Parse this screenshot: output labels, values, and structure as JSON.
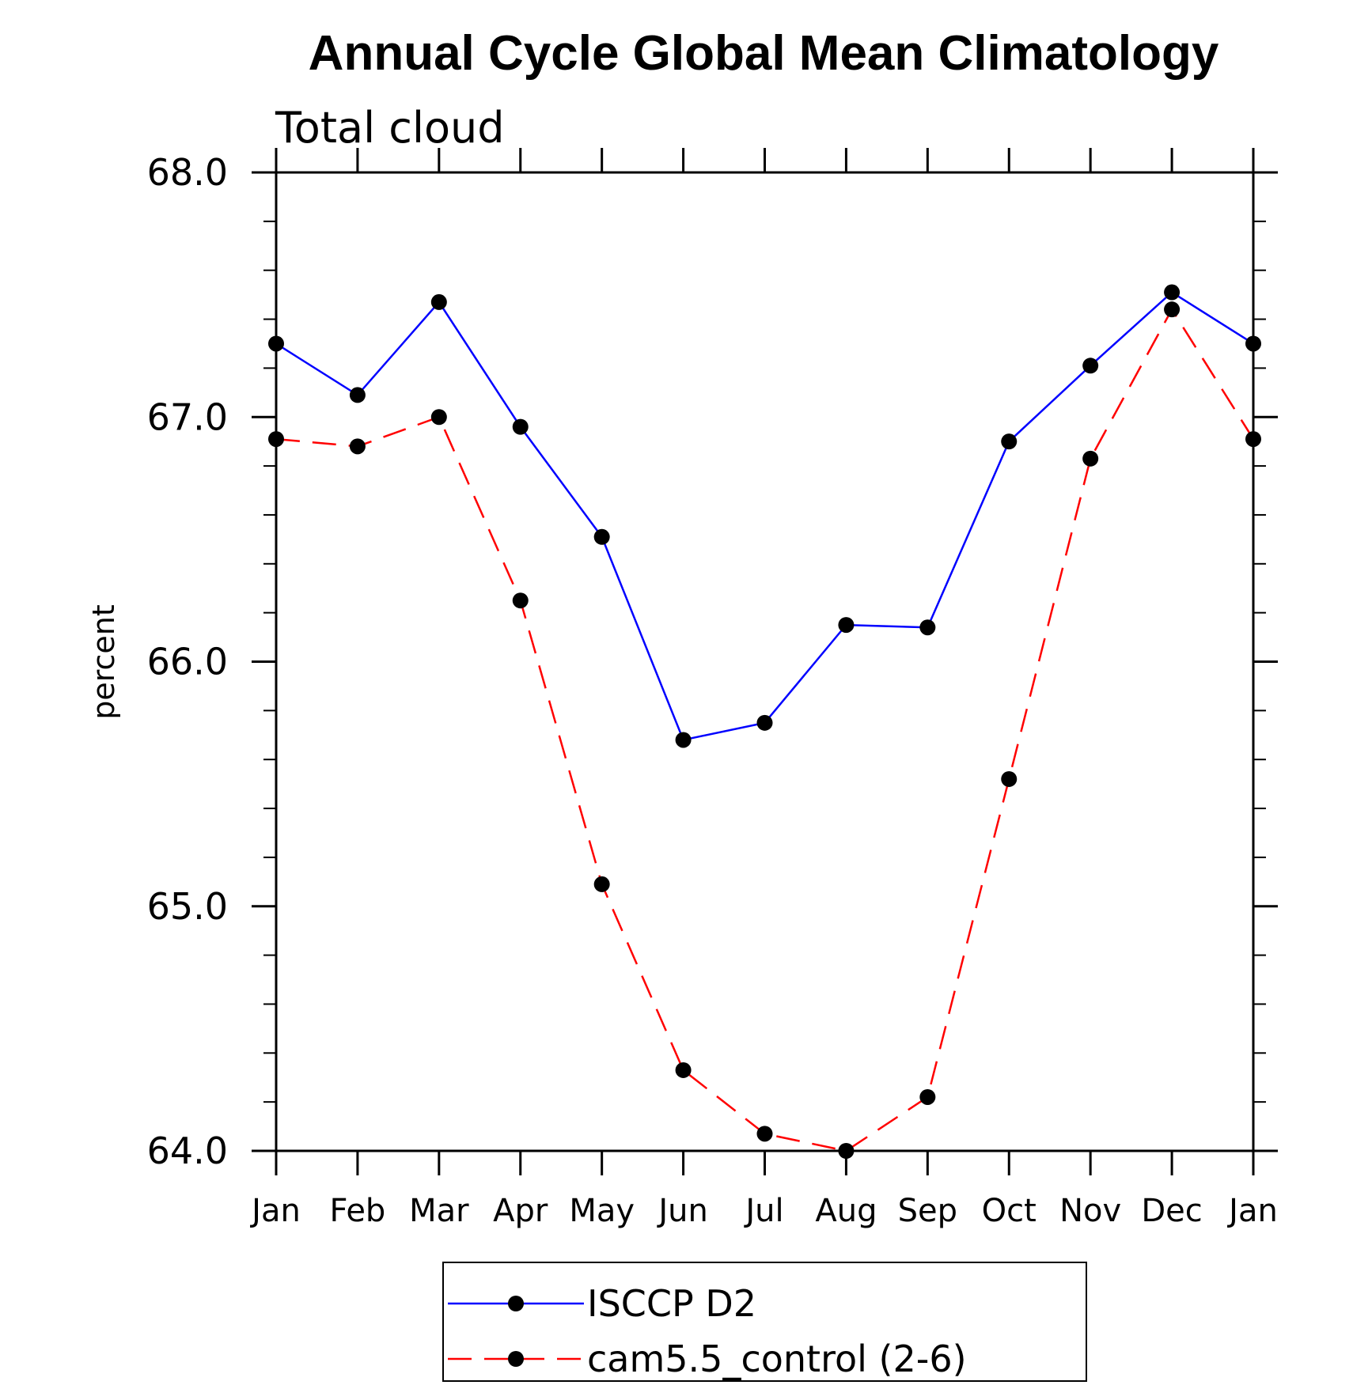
{
  "chart_data": {
    "type": "line",
    "title": "Annual Cycle Global Mean Climatology",
    "subtitle": "Total cloud",
    "xlabel": "",
    "ylabel": "percent",
    "categories": [
      "Jan",
      "Feb",
      "Mar",
      "Apr",
      "May",
      "Jun",
      "Jul",
      "Aug",
      "Sep",
      "Oct",
      "Nov",
      "Dec",
      "Jan"
    ],
    "ylim": [
      64.0,
      68.0
    ],
    "yticks": [
      "64.0",
      "65.0",
      "66.0",
      "67.0",
      "68.0"
    ],
    "grid": false,
    "legend_position": "bottom-center",
    "series": [
      {
        "name": "ISCCP D2",
        "color": "#0000ff",
        "line_style": "solid",
        "marker": "filled-circle",
        "values": [
          67.3,
          67.09,
          67.47,
          66.96,
          66.51,
          65.68,
          65.75,
          66.15,
          66.14,
          66.9,
          67.21,
          67.51,
          67.3
        ]
      },
      {
        "name": "cam5.5_control (2-6)",
        "color": "#ff0000",
        "line_style": "dashed",
        "marker": "filled-circle",
        "values": [
          66.91,
          66.88,
          67.0,
          66.25,
          65.09,
          64.33,
          64.07,
          64.0,
          64.22,
          65.52,
          66.83,
          67.44,
          66.91
        ]
      }
    ]
  }
}
